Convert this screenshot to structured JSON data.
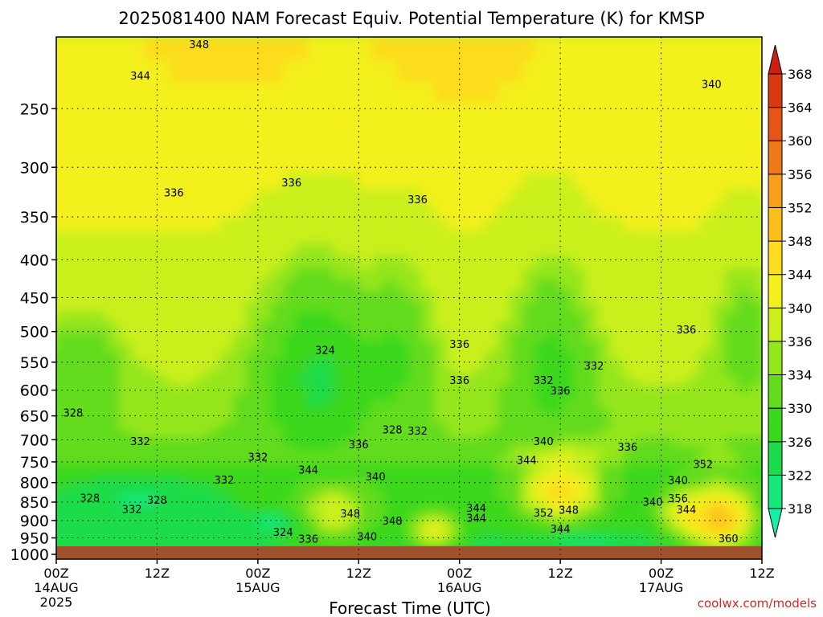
{
  "chart_data": {
    "type": "heatmap",
    "title": "2025081400 NAM Forecast Equiv. Potential Temperature (K) for KMSP",
    "xlabel": "Forecast Time (UTC)",
    "ylabel": "",
    "x_ticks": [
      {
        "hour": 0,
        "label": "00Z",
        "sub": [
          "14AUG",
          "2025"
        ]
      },
      {
        "hour": 12,
        "label": "12Z",
        "sub": []
      },
      {
        "hour": 24,
        "label": "00Z",
        "sub": [
          "15AUG"
        ]
      },
      {
        "hour": 36,
        "label": "12Z",
        "sub": []
      },
      {
        "hour": 48,
        "label": "00Z",
        "sub": [
          "16AUG"
        ]
      },
      {
        "hour": 60,
        "label": "12Z",
        "sub": []
      },
      {
        "hour": 72,
        "label": "00Z",
        "sub": [
          "17AUG"
        ]
      },
      {
        "hour": 84,
        "label": "12Z",
        "sub": []
      }
    ],
    "xlim": [
      0,
      84
    ],
    "y_ticks": [
      250,
      300,
      350,
      400,
      450,
      500,
      550,
      600,
      650,
      700,
      750,
      800,
      850,
      900,
      950,
      1000
    ],
    "ylim": [
      1015,
      200
    ],
    "y_scale": "log",
    "grid": true,
    "colorbar": {
      "levels": [
        318,
        322,
        326,
        330,
        334,
        336,
        340,
        344,
        348,
        352,
        356,
        360,
        364,
        368
      ],
      "colors": [
        "#16f0a6",
        "#15e87a",
        "#1bdc4a",
        "#3ad81c",
        "#62dc1c",
        "#96e61c",
        "#caf01c",
        "#f4f01c",
        "#fcdc1c",
        "#fcbe1c",
        "#f89e1a",
        "#f07818",
        "#e85414",
        "#dc3810",
        "#cc2010"
      ]
    },
    "contour_labels": [
      {
        "hour": 17,
        "p": 205,
        "value": 348
      },
      {
        "hour": 10,
        "p": 226,
        "value": 344
      },
      {
        "hour": 78,
        "p": 232,
        "value": 340
      },
      {
        "hour": 14,
        "p": 325,
        "value": 336
      },
      {
        "hour": 28,
        "p": 315,
        "value": 336
      },
      {
        "hour": 43,
        "p": 332,
        "value": 336
      },
      {
        "hour": 32,
        "p": 531,
        "value": 324
      },
      {
        "hour": 48,
        "p": 521,
        "value": 336
      },
      {
        "hour": 48,
        "p": 583,
        "value": 336
      },
      {
        "hour": 64,
        "p": 557,
        "value": 332
      },
      {
        "hour": 58,
        "p": 583,
        "value": 332
      },
      {
        "hour": 60,
        "p": 602,
        "value": 336
      },
      {
        "hour": 75,
        "p": 498,
        "value": 336
      },
      {
        "hour": 2,
        "p": 645,
        "value": 328
      },
      {
        "hour": 10,
        "p": 705,
        "value": 332
      },
      {
        "hour": 24,
        "p": 740,
        "value": 332
      },
      {
        "hour": 20,
        "p": 795,
        "value": 332
      },
      {
        "hour": 4,
        "p": 840,
        "value": 328
      },
      {
        "hour": 12,
        "p": 846,
        "value": 328
      },
      {
        "hour": 9,
        "p": 870,
        "value": 332
      },
      {
        "hour": 30,
        "p": 770,
        "value": 344
      },
      {
        "hour": 36,
        "p": 712,
        "value": 336
      },
      {
        "hour": 40,
        "p": 680,
        "value": 328
      },
      {
        "hour": 43,
        "p": 682,
        "value": 332
      },
      {
        "hour": 38,
        "p": 787,
        "value": 340
      },
      {
        "hour": 58,
        "p": 705,
        "value": 340
      },
      {
        "hour": 56,
        "p": 747,
        "value": 344
      },
      {
        "hour": 68,
        "p": 717,
        "value": 336
      },
      {
        "hour": 74,
        "p": 796,
        "value": 340
      },
      {
        "hour": 74,
        "p": 842,
        "value": 356
      },
      {
        "hour": 77,
        "p": 757,
        "value": 352
      },
      {
        "hour": 71,
        "p": 851,
        "value": 340
      },
      {
        "hour": 75,
        "p": 872,
        "value": 344
      },
      {
        "hour": 50,
        "p": 867,
        "value": 344
      },
      {
        "hour": 50,
        "p": 895,
        "value": 344
      },
      {
        "hour": 58,
        "p": 880,
        "value": 352
      },
      {
        "hour": 61,
        "p": 873,
        "value": 348
      },
      {
        "hour": 60,
        "p": 925,
        "value": 344
      },
      {
        "hour": 35,
        "p": 882,
        "value": 348
      },
      {
        "hour": 40,
        "p": 903,
        "value": 348
      },
      {
        "hour": 27,
        "p": 935,
        "value": 324
      },
      {
        "hour": 30,
        "p": 955,
        "value": 336
      },
      {
        "hour": 37,
        "p": 948,
        "value": 340
      },
      {
        "hour": 80,
        "p": 953,
        "value": 360
      }
    ],
    "ground": {
      "from_p": 975,
      "color": "#a0522d"
    }
  },
  "watermark": "coolwx.com/models"
}
